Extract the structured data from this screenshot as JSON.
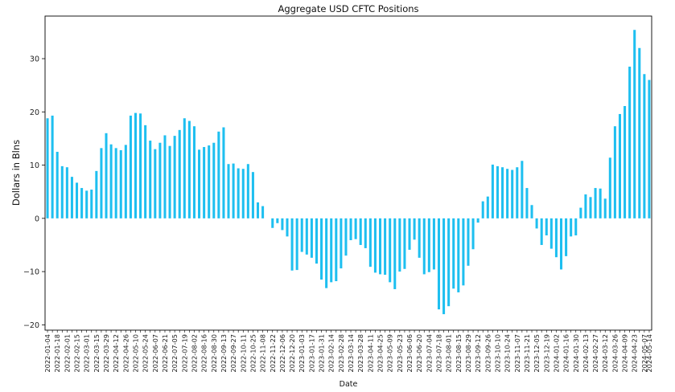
{
  "chart_data": {
    "type": "bar",
    "title": "Aggregate USD CFTC Positions",
    "xlabel": "Date",
    "ylabel": "Dollars in Blns",
    "ylim": [
      -21,
      38
    ],
    "yticks": [
      -20,
      -10,
      0,
      10,
      20,
      30
    ],
    "grid": false,
    "bar_color": "#1ebff0",
    "categories": [
      "2022-01-04",
      "2022-01-11",
      "2022-01-18",
      "2022-01-25",
      "2022-02-01",
      "2022-02-08",
      "2022-02-15",
      "2022-02-22",
      "2022-03-01",
      "2022-03-08",
      "2022-03-15",
      "2022-03-22",
      "2022-03-29",
      "2022-04-05",
      "2022-04-12",
      "2022-04-19",
      "2022-04-26",
      "2022-05-03",
      "2022-05-10",
      "2022-05-17",
      "2022-05-24",
      "2022-05-31",
      "2022-06-07",
      "2022-06-14",
      "2022-06-21",
      "2022-06-28",
      "2022-07-05",
      "2022-07-12",
      "2022-07-19",
      "2022-07-26",
      "2022-08-02",
      "2022-08-09",
      "2022-08-16",
      "2022-08-23",
      "2022-08-30",
      "2022-09-06",
      "2022-09-13",
      "2022-09-20",
      "2022-09-27",
      "2022-10-04",
      "2022-10-11",
      "2022-10-18",
      "2022-10-25",
      "2022-11-01",
      "2022-11-08",
      "2022-11-15",
      "2022-11-22",
      "2022-11-29",
      "2022-12-06",
      "2022-12-13",
      "2022-12-20",
      "2022-12-27",
      "2023-01-03",
      "2023-01-10",
      "2023-01-17",
      "2023-01-24",
      "2023-01-31",
      "2023-02-07",
      "2023-02-14",
      "2023-02-21",
      "2023-02-28",
      "2023-03-07",
      "2023-03-14",
      "2023-03-21",
      "2023-03-28",
      "2023-04-04",
      "2023-04-11",
      "2023-04-18",
      "2023-04-25",
      "2023-05-02",
      "2023-05-09",
      "2023-05-16",
      "2023-05-23",
      "2023-05-30",
      "2023-06-06",
      "2023-06-13",
      "2023-06-20",
      "2023-06-27",
      "2023-07-04",
      "2023-07-11",
      "2023-07-18",
      "2023-07-25",
      "2023-08-01",
      "2023-08-08",
      "2023-08-15",
      "2023-08-22",
      "2023-08-29",
      "2023-09-05",
      "2023-09-12",
      "2023-09-19",
      "2023-09-26",
      "2023-10-03",
      "2023-10-10",
      "2023-10-17",
      "2023-10-24",
      "2023-10-31",
      "2023-11-07",
      "2023-11-14",
      "2023-11-21",
      "2023-11-28",
      "2023-12-05",
      "2023-12-12",
      "2023-12-19",
      "2023-12-26",
      "2024-01-02",
      "2024-01-09",
      "2024-01-16",
      "2024-01-23",
      "2024-01-30",
      "2024-02-06",
      "2024-02-13",
      "2024-02-20",
      "2024-02-27",
      "2024-03-05",
      "2024-03-12",
      "2024-03-19",
      "2024-03-26",
      "2024-04-02",
      "2024-04-09",
      "2024-04-16",
      "2024-04-23",
      "2024-04-30",
      "2024-05-07",
      "2024-05-14"
    ],
    "visible_tick_labels": [
      "2022-01-04",
      "2022-01-18",
      "2022-02-01",
      "2022-02-15",
      "2022-03-01",
      "2022-03-15",
      "2022-03-29",
      "2022-04-12",
      "2022-04-26",
      "2022-05-10",
      "2022-05-24",
      "2022-06-07",
      "2022-06-21",
      "2022-07-05",
      "2022-07-19",
      "2022-08-02",
      "2022-08-16",
      "2022-08-30",
      "2022-09-13",
      "2022-09-27",
      "2022-10-11",
      "2022-10-25",
      "2022-11-08",
      "2022-11-22",
      "2022-12-06",
      "2022-12-20",
      "2023-01-03",
      "2023-01-17",
      "2023-01-31",
      "2023-02-14",
      "2023-02-28",
      "2023-03-14",
      "2023-03-28",
      "2023-04-11",
      "2023-04-25",
      "2023-05-09",
      "2023-05-23",
      "2023-06-06",
      "2023-06-20",
      "2023-07-04",
      "2023-07-18",
      "2023-08-01",
      "2023-08-15",
      "2023-08-29",
      "2023-09-12",
      "2023-09-26",
      "2023-10-10",
      "2023-10-24",
      "2023-11-07",
      "2023-11-21",
      "2023-12-05",
      "2023-12-19",
      "2024-01-02",
      "2024-01-16",
      "2024-01-30",
      "2024-02-13",
      "2024-02-27",
      "2024-03-12",
      "2024-03-26",
      "2024-04-09",
      "2024-04-23",
      "2024-05-07",
      "2024-05-14"
    ],
    "values": [
      18.8,
      19.3,
      12.5,
      9.8,
      9.6,
      7.8,
      6.7,
      5.7,
      5.2,
      5.4,
      8.9,
      13.2,
      16.0,
      13.9,
      13.2,
      12.8,
      13.8,
      19.3,
      19.8,
      19.7,
      17.5,
      14.6,
      13.0,
      14.2,
      15.6,
      13.6,
      15.5,
      16.6,
      18.8,
      18.3,
      17.3,
      12.9,
      13.4,
      13.7,
      14.2,
      16.3,
      17.1,
      10.2,
      10.3,
      9.4,
      9.3,
      10.2,
      8.7,
      3.0,
      2.3,
      null,
      -1.8,
      -0.9,
      -2.2,
      -3.4,
      -9.8,
      -9.7,
      -6.3,
      -6.8,
      -7.4,
      -8.5,
      -11.5,
      -13.1,
      -12.0,
      -11.8,
      -9.4,
      -7.0,
      -4.1,
      -3.9,
      -5.0,
      -5.6,
      -9.1,
      -10.2,
      -10.5,
      -10.6,
      -12.0,
      -13.3,
      -10.0,
      -9.5,
      -5.9,
      -4.0,
      -7.4,
      -10.5,
      -10.1,
      -9.6,
      -17.1,
      -18.0,
      -16.5,
      -13.2,
      -13.9,
      -12.6,
      -8.9,
      -5.8,
      -0.8,
      3.2,
      4.1,
      10.1,
      9.8,
      9.6,
      9.3,
      9.1,
      9.6,
      10.8,
      5.7,
      2.5,
      -1.9,
      -5.0,
      -3.2,
      -5.7,
      -7.3,
      -9.6,
      -7.1,
      -3.4,
      -3.2,
      2.0,
      4.5,
      4.0,
      5.7,
      5.6,
      3.7,
      11.4,
      17.3,
      19.6,
      21.1,
      28.5,
      35.4,
      32.0,
      27.1,
      26.0
    ]
  }
}
